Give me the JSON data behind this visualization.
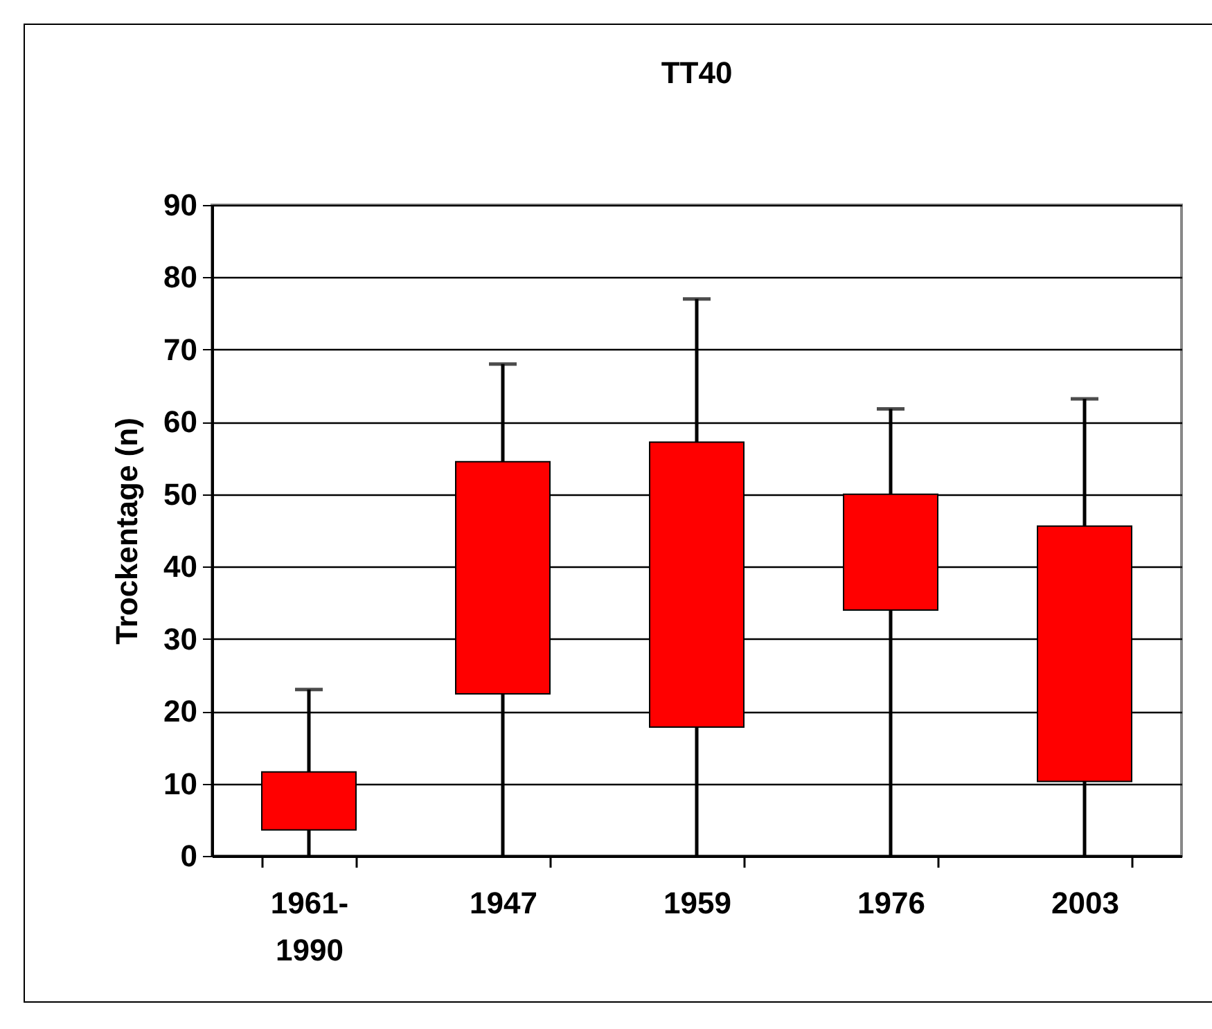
{
  "chart_data": {
    "type": "box",
    "title": "TT40",
    "ylabel": "Trockentage (n)",
    "categories": [
      "1961-1990",
      "1947",
      "1959",
      "1976",
      "2003"
    ],
    "boxes": [
      {
        "low": 0,
        "q1": 3.6,
        "q3": 11.6,
        "high": 23
      },
      {
        "low": 0,
        "q1": 22.4,
        "q3": 54.5,
        "high": 68
      },
      {
        "low": 0,
        "q1": 17.8,
        "q3": 57.2,
        "high": 77
      },
      {
        "low": 0,
        "q1": 34,
        "q3": 50,
        "high": 61.8
      },
      {
        "low": 0,
        "q1": 10.3,
        "q3": 45.6,
        "high": 63.2
      }
    ],
    "color": "#ff0000",
    "ylim": [
      0,
      90
    ],
    "yticks": [
      0,
      10,
      20,
      30,
      40,
      50,
      60,
      70,
      80,
      90
    ],
    "grid": "y"
  }
}
